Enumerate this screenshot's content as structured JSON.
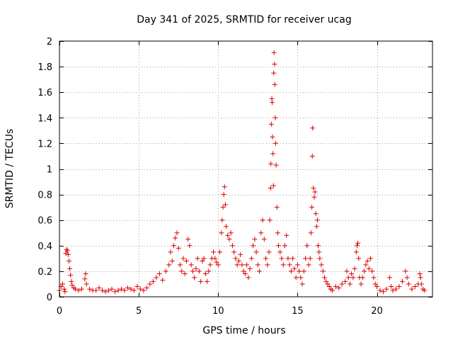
{
  "chart_data": {
    "type": "scatter",
    "title": "Day 341 of 2025, SRMTID for receiver ucag",
    "xlabel": "GPS time / hours",
    "ylabel": "SRMTID / TECUs",
    "xlim": [
      0,
      23.5
    ],
    "ylim": [
      0,
      2
    ],
    "xticks": [
      0,
      5,
      10,
      15,
      20
    ],
    "xtick_labels": [
      "0",
      "5",
      "10",
      "15",
      "20"
    ],
    "yticks": [
      0,
      0.2,
      0.4,
      0.6,
      0.8,
      1,
      1.2,
      1.4,
      1.6,
      1.8,
      2
    ],
    "ytick_labels": [
      "0",
      "0.2",
      "0.4",
      "0.6",
      "0.8",
      "1",
      "1.2",
      "1.4",
      "1.6",
      "1.8",
      "2"
    ],
    "grid": true,
    "marker": "+",
    "color": "#dd0000",
    "series": [
      {
        "name": "SRMTID",
        "points": [
          [
            0.0,
            0.05
          ],
          [
            0.1,
            0.08
          ],
          [
            0.2,
            0.1
          ],
          [
            0.3,
            0.06
          ],
          [
            0.35,
            0.04
          ],
          [
            0.4,
            0.34
          ],
          [
            0.45,
            0.37
          ],
          [
            0.5,
            0.36
          ],
          [
            0.55,
            0.33
          ],
          [
            0.6,
            0.28
          ],
          [
            0.65,
            0.22
          ],
          [
            0.7,
            0.17
          ],
          [
            0.75,
            0.12
          ],
          [
            0.8,
            0.09
          ],
          [
            0.9,
            0.07
          ],
          [
            1.0,
            0.06
          ],
          [
            1.2,
            0.05
          ],
          [
            1.4,
            0.06
          ],
          [
            1.6,
            0.14
          ],
          [
            1.65,
            0.18
          ],
          [
            1.7,
            0.1
          ],
          [
            1.9,
            0.06
          ],
          [
            2.1,
            0.05
          ],
          [
            2.3,
            0.05
          ],
          [
            2.5,
            0.07
          ],
          [
            2.7,
            0.05
          ],
          [
            2.9,
            0.04
          ],
          [
            3.1,
            0.05
          ],
          [
            3.3,
            0.06
          ],
          [
            3.5,
            0.04
          ],
          [
            3.7,
            0.05
          ],
          [
            3.9,
            0.06
          ],
          [
            4.1,
            0.05
          ],
          [
            4.3,
            0.07
          ],
          [
            4.5,
            0.06
          ],
          [
            4.7,
            0.05
          ],
          [
            4.9,
            0.08
          ],
          [
            5.1,
            0.06
          ],
          [
            5.3,
            0.05
          ],
          [
            5.5,
            0.07
          ],
          [
            5.7,
            0.1
          ],
          [
            5.9,
            0.12
          ],
          [
            6.1,
            0.15
          ],
          [
            6.3,
            0.18
          ],
          [
            6.5,
            0.13
          ],
          [
            6.7,
            0.2
          ],
          [
            6.9,
            0.25
          ],
          [
            7.0,
            0.35
          ],
          [
            7.1,
            0.28
          ],
          [
            7.2,
            0.4
          ],
          [
            7.3,
            0.46
          ],
          [
            7.4,
            0.5
          ],
          [
            7.5,
            0.38
          ],
          [
            7.6,
            0.25
          ],
          [
            7.7,
            0.2
          ],
          [
            7.8,
            0.3
          ],
          [
            7.9,
            0.18
          ],
          [
            8.0,
            0.28
          ],
          [
            8.1,
            0.45
          ],
          [
            8.2,
            0.4
          ],
          [
            8.3,
            0.25
          ],
          [
            8.4,
            0.2
          ],
          [
            8.5,
            0.15
          ],
          [
            8.6,
            0.22
          ],
          [
            8.7,
            0.3
          ],
          [
            8.8,
            0.2
          ],
          [
            8.9,
            0.12
          ],
          [
            9.0,
            0.28
          ],
          [
            9.1,
            0.3
          ],
          [
            9.2,
            0.18
          ],
          [
            9.3,
            0.12
          ],
          [
            9.4,
            0.2
          ],
          [
            9.5,
            0.25
          ],
          [
            9.6,
            0.3
          ],
          [
            9.7,
            0.35
          ],
          [
            9.8,
            0.3
          ],
          [
            9.9,
            0.27
          ],
          [
            10.0,
            0.25
          ],
          [
            10.1,
            0.35
          ],
          [
            10.2,
            0.5
          ],
          [
            10.25,
            0.6
          ],
          [
            10.3,
            0.7
          ],
          [
            10.35,
            0.8
          ],
          [
            10.4,
            0.86
          ],
          [
            10.45,
            0.72
          ],
          [
            10.5,
            0.55
          ],
          [
            10.6,
            0.48
          ],
          [
            10.7,
            0.45
          ],
          [
            10.8,
            0.5
          ],
          [
            10.9,
            0.4
          ],
          [
            11.0,
            0.35
          ],
          [
            11.1,
            0.3
          ],
          [
            11.2,
            0.25
          ],
          [
            11.3,
            0.28
          ],
          [
            11.4,
            0.33
          ],
          [
            11.5,
            0.25
          ],
          [
            11.6,
            0.2
          ],
          [
            11.7,
            0.18
          ],
          [
            11.8,
            0.25
          ],
          [
            11.9,
            0.15
          ],
          [
            12.0,
            0.22
          ],
          [
            12.1,
            0.3
          ],
          [
            12.2,
            0.4
          ],
          [
            12.3,
            0.45
          ],
          [
            12.4,
            0.35
          ],
          [
            12.5,
            0.25
          ],
          [
            12.6,
            0.2
          ],
          [
            12.7,
            0.5
          ],
          [
            12.8,
            0.6
          ],
          [
            12.9,
            0.45
          ],
          [
            13.0,
            0.3
          ],
          [
            13.1,
            0.25
          ],
          [
            13.2,
            0.35
          ],
          [
            13.25,
            0.6
          ],
          [
            13.3,
            0.85
          ],
          [
            13.32,
            1.04
          ],
          [
            13.35,
            1.35
          ],
          [
            13.38,
            1.55
          ],
          [
            13.4,
            1.52
          ],
          [
            13.42,
            1.25
          ],
          [
            13.45,
            1.12
          ],
          [
            13.48,
            0.87
          ],
          [
            13.5,
            1.75
          ],
          [
            13.52,
            1.91
          ],
          [
            13.55,
            1.82
          ],
          [
            13.57,
            1.66
          ],
          [
            13.6,
            1.4
          ],
          [
            13.62,
            1.2
          ],
          [
            13.65,
            1.03
          ],
          [
            13.7,
            0.7
          ],
          [
            13.75,
            0.5
          ],
          [
            13.8,
            0.4
          ],
          [
            13.9,
            0.35
          ],
          [
            14.0,
            0.3
          ],
          [
            14.1,
            0.25
          ],
          [
            14.2,
            0.4
          ],
          [
            14.3,
            0.48
          ],
          [
            14.4,
            0.3
          ],
          [
            14.5,
            0.25
          ],
          [
            14.6,
            0.2
          ],
          [
            14.7,
            0.3
          ],
          [
            14.8,
            0.22
          ],
          [
            14.9,
            0.15
          ],
          [
            15.0,
            0.25
          ],
          [
            15.1,
            0.2
          ],
          [
            15.2,
            0.15
          ],
          [
            15.3,
            0.1
          ],
          [
            15.4,
            0.2
          ],
          [
            15.5,
            0.3
          ],
          [
            15.6,
            0.4
          ],
          [
            15.7,
            0.25
          ],
          [
            15.8,
            0.3
          ],
          [
            15.85,
            0.5
          ],
          [
            15.9,
            0.7
          ],
          [
            15.93,
            1.1
          ],
          [
            15.95,
            1.32
          ],
          [
            16.0,
            0.85
          ],
          [
            16.05,
            0.78
          ],
          [
            16.1,
            0.82
          ],
          [
            16.15,
            0.65
          ],
          [
            16.2,
            0.55
          ],
          [
            16.25,
            0.6
          ],
          [
            16.3,
            0.4
          ],
          [
            16.35,
            0.35
          ],
          [
            16.4,
            0.3
          ],
          [
            16.5,
            0.25
          ],
          [
            16.6,
            0.2
          ],
          [
            16.7,
            0.15
          ],
          [
            16.8,
            0.12
          ],
          [
            16.9,
            0.1
          ],
          [
            17.0,
            0.08
          ],
          [
            17.1,
            0.06
          ],
          [
            17.2,
            0.05
          ],
          [
            17.4,
            0.08
          ],
          [
            17.6,
            0.07
          ],
          [
            17.8,
            0.1
          ],
          [
            18.0,
            0.12
          ],
          [
            18.1,
            0.2
          ],
          [
            18.2,
            0.15
          ],
          [
            18.3,
            0.1
          ],
          [
            18.4,
            0.18
          ],
          [
            18.5,
            0.15
          ],
          [
            18.6,
            0.22
          ],
          [
            18.7,
            0.35
          ],
          [
            18.75,
            0.4
          ],
          [
            18.8,
            0.42
          ],
          [
            18.85,
            0.3
          ],
          [
            18.9,
            0.15
          ],
          [
            19.0,
            0.1
          ],
          [
            19.1,
            0.15
          ],
          [
            19.2,
            0.2
          ],
          [
            19.3,
            0.25
          ],
          [
            19.4,
            0.28
          ],
          [
            19.5,
            0.22
          ],
          [
            19.6,
            0.3
          ],
          [
            19.7,
            0.2
          ],
          [
            19.8,
            0.15
          ],
          [
            19.9,
            0.1
          ],
          [
            20.0,
            0.08
          ],
          [
            20.2,
            0.05
          ],
          [
            20.4,
            0.04
          ],
          [
            20.6,
            0.06
          ],
          [
            20.8,
            0.15
          ],
          [
            20.9,
            0.08
          ],
          [
            21.0,
            0.05
          ],
          [
            21.2,
            0.06
          ],
          [
            21.4,
            0.08
          ],
          [
            21.6,
            0.12
          ],
          [
            21.8,
            0.2
          ],
          [
            21.9,
            0.15
          ],
          [
            22.0,
            0.1
          ],
          [
            22.2,
            0.06
          ],
          [
            22.4,
            0.08
          ],
          [
            22.6,
            0.1
          ],
          [
            22.7,
            0.18
          ],
          [
            22.75,
            0.15
          ],
          [
            22.8,
            0.1
          ],
          [
            22.9,
            0.06
          ],
          [
            23.0,
            0.05
          ]
        ]
      }
    ]
  }
}
